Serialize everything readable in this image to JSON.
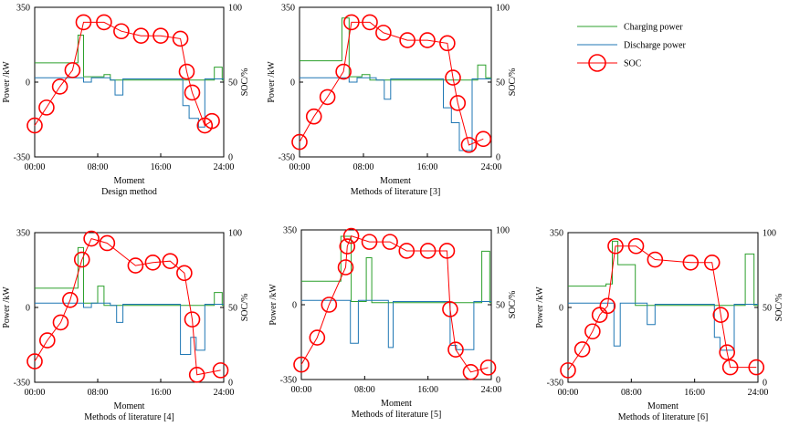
{
  "legend": {
    "placement": "top-right",
    "items": [
      {
        "label": "Charging power",
        "color": "#2ca02c",
        "style": "line"
      },
      {
        "label": "Discharge power",
        "color": "#1f77b4",
        "style": "line"
      },
      {
        "label": "SOC",
        "color": "#ff0000",
        "style": "circle-line"
      }
    ]
  },
  "chart_data": [
    {
      "type": "line",
      "caption": "Design method",
      "xlabel": "Moment",
      "ylabel": "Power /kW",
      "y2label": "SOC/%",
      "xlim": [
        0,
        24
      ],
      "ylim": [
        -350,
        350
      ],
      "y2lim": [
        0,
        100
      ],
      "xticks": [
        "00:00",
        "08:00",
        "16:00",
        "24:00"
      ],
      "yticks": [
        "-350",
        "0",
        "350"
      ],
      "y2ticks": [
        "0",
        "50",
        "100"
      ],
      "charging_power": [
        [
          0,
          90
        ],
        [
          5.5,
          90
        ],
        [
          5.5,
          220
        ],
        [
          6.2,
          220
        ],
        [
          6.2,
          25
        ],
        [
          8.8,
          25
        ],
        [
          8.8,
          35
        ],
        [
          9.6,
          35
        ],
        [
          9.6,
          10
        ],
        [
          22.8,
          10
        ],
        [
          22.8,
          70
        ],
        [
          23.8,
          70
        ],
        [
          23.8,
          10
        ],
        [
          24,
          10
        ]
      ],
      "discharge_power": [
        [
          0,
          20
        ],
        [
          6.2,
          20
        ],
        [
          6.2,
          0
        ],
        [
          7.2,
          0
        ],
        [
          7.2,
          20
        ],
        [
          9.6,
          20
        ],
        [
          9.6,
          10
        ],
        [
          10.2,
          10
        ],
        [
          10.2,
          -60
        ],
        [
          11.2,
          -60
        ],
        [
          11.2,
          15
        ],
        [
          18.8,
          15
        ],
        [
          18.8,
          -110
        ],
        [
          19.6,
          -110
        ],
        [
          19.6,
          -170
        ],
        [
          20.8,
          -170
        ],
        [
          20.8,
          -210
        ],
        [
          21.6,
          -210
        ],
        [
          21.6,
          15
        ],
        [
          24,
          15
        ]
      ],
      "soc": [
        [
          0,
          21
        ],
        [
          1.5,
          33
        ],
        [
          3.2,
          47
        ],
        [
          4.8,
          58
        ],
        [
          6.2,
          90
        ],
        [
          8.8,
          90
        ],
        [
          11,
          84
        ],
        [
          13.5,
          81
        ],
        [
          16,
          81
        ],
        [
          18.5,
          79
        ],
        [
          19.3,
          57
        ],
        [
          20,
          43
        ],
        [
          21.6,
          21
        ],
        [
          22.5,
          24
        ]
      ]
    },
    {
      "type": "line",
      "caption": "Methods of literature [3]",
      "xlabel": "Moment",
      "ylabel": "Power /kW",
      "y2label": "SOC/%",
      "xlim": [
        0,
        24
      ],
      "ylim": [
        -350,
        350
      ],
      "y2lim": [
        0,
        100
      ],
      "xticks": [
        "00:00",
        "08:00",
        "16:00",
        "24:00"
      ],
      "yticks": [
        "-350",
        "0",
        "350"
      ],
      "y2ticks": [
        "0",
        "50",
        "100"
      ],
      "charging_power": [
        [
          0,
          100
        ],
        [
          4.5,
          100
        ],
        [
          4.5,
          100
        ],
        [
          5.3,
          100
        ],
        [
          5.3,
          300
        ],
        [
          6.2,
          300
        ],
        [
          6.2,
          25
        ],
        [
          7.8,
          25
        ],
        [
          7.8,
          35
        ],
        [
          8.8,
          35
        ],
        [
          8.8,
          10
        ],
        [
          22.3,
          10
        ],
        [
          22.3,
          80
        ],
        [
          23.3,
          80
        ],
        [
          23.3,
          20
        ],
        [
          24,
          20
        ]
      ],
      "discharge_power": [
        [
          0,
          20
        ],
        [
          6.2,
          20
        ],
        [
          6.2,
          0
        ],
        [
          7.2,
          0
        ],
        [
          7.2,
          20
        ],
        [
          9.6,
          20
        ],
        [
          9.6,
          10
        ],
        [
          10.6,
          10
        ],
        [
          10.6,
          -80
        ],
        [
          11.4,
          -80
        ],
        [
          11.4,
          15
        ],
        [
          18,
          15
        ],
        [
          18,
          -120
        ],
        [
          19,
          -120
        ],
        [
          19,
          -190
        ],
        [
          20,
          -190
        ],
        [
          20,
          -320
        ],
        [
          21.6,
          -320
        ],
        [
          21.6,
          15
        ],
        [
          24,
          15
        ]
      ],
      "soc": [
        [
          0,
          10
        ],
        [
          1.8,
          27
        ],
        [
          3.5,
          40
        ],
        [
          5.5,
          57
        ],
        [
          6.5,
          90
        ],
        [
          8.8,
          90
        ],
        [
          10.5,
          83
        ],
        [
          13.5,
          78
        ],
        [
          16,
          78
        ],
        [
          18.5,
          76
        ],
        [
          19.2,
          53
        ],
        [
          19.8,
          36
        ],
        [
          21.2,
          8
        ],
        [
          23,
          12
        ]
      ]
    },
    {
      "type": "line",
      "caption": "Methods of literature [4]",
      "xlabel": "Moment",
      "ylabel": "Power /kW",
      "y2label": "SOC/%",
      "xlim": [
        0,
        24
      ],
      "ylim": [
        -350,
        350
      ],
      "y2lim": [
        0,
        100
      ],
      "xticks": [
        "00:00",
        "08:00",
        "16:00",
        "24:00"
      ],
      "yticks": [
        "-350",
        "0",
        "350"
      ],
      "y2ticks": [
        "0",
        "50",
        "100"
      ],
      "charging_power": [
        [
          0,
          90
        ],
        [
          5.5,
          90
        ],
        [
          5.5,
          280
        ],
        [
          6.2,
          280
        ],
        [
          6.2,
          20
        ],
        [
          8,
          20
        ],
        [
          8,
          100
        ],
        [
          8.8,
          100
        ],
        [
          8.8,
          10
        ],
        [
          22.8,
          10
        ],
        [
          22.8,
          70
        ],
        [
          23.8,
          70
        ],
        [
          23.8,
          10
        ],
        [
          24,
          10
        ]
      ],
      "discharge_power": [
        [
          0,
          20
        ],
        [
          6.2,
          20
        ],
        [
          6.2,
          0
        ],
        [
          7.2,
          0
        ],
        [
          7.2,
          20
        ],
        [
          9.6,
          20
        ],
        [
          9.6,
          10
        ],
        [
          10.4,
          10
        ],
        [
          10.4,
          -70
        ],
        [
          11.2,
          -70
        ],
        [
          11.2,
          15
        ],
        [
          18.5,
          15
        ],
        [
          18.5,
          -220
        ],
        [
          19.8,
          -220
        ],
        [
          19.8,
          -140
        ],
        [
          20.5,
          -140
        ],
        [
          20.5,
          -200
        ],
        [
          21.6,
          -200
        ],
        [
          21.6,
          15
        ],
        [
          24,
          15
        ]
      ],
      "soc": [
        [
          0,
          14
        ],
        [
          1.6,
          28
        ],
        [
          3.3,
          40
        ],
        [
          4.5,
          55
        ],
        [
          6,
          82
        ],
        [
          7.2,
          96
        ],
        [
          9.2,
          93
        ],
        [
          12.8,
          78
        ],
        [
          15,
          80
        ],
        [
          17.2,
          81
        ],
        [
          19,
          73
        ],
        [
          20,
          42
        ],
        [
          20.6,
          5
        ],
        [
          23.6,
          8
        ]
      ]
    },
    {
      "type": "line",
      "caption": "Methods of literature [5]",
      "xlabel": "Moment",
      "ylabel": "Power /kW",
      "y2label": "SOC/%",
      "xlim": [
        0,
        24
      ],
      "ylim": [
        -350,
        350
      ],
      "y2lim": [
        0,
        100
      ],
      "xticks": [
        "00:00",
        "08:00",
        "16:00",
        "24:00"
      ],
      "yticks": [
        "-350",
        "0",
        "350"
      ],
      "y2ticks": [
        "0",
        "50",
        "100"
      ],
      "charging_power": [
        [
          0,
          110
        ],
        [
          5,
          110
        ],
        [
          5,
          320
        ],
        [
          6.3,
          320
        ],
        [
          6.3,
          15
        ],
        [
          8.2,
          15
        ],
        [
          8.2,
          220
        ],
        [
          8.9,
          220
        ],
        [
          8.9,
          10
        ],
        [
          22.8,
          10
        ],
        [
          22.8,
          250
        ],
        [
          23.8,
          250
        ],
        [
          23.8,
          10
        ],
        [
          24,
          10
        ]
      ],
      "discharge_power": [
        [
          0,
          20
        ],
        [
          6.2,
          20
        ],
        [
          6.2,
          -180
        ],
        [
          7.2,
          -180
        ],
        [
          7.2,
          20
        ],
        [
          11,
          20
        ],
        [
          11,
          -200
        ],
        [
          11.6,
          -200
        ],
        [
          11.6,
          15
        ],
        [
          18.8,
          15
        ],
        [
          18.8,
          -190
        ],
        [
          19.6,
          -190
        ],
        [
          19.6,
          -210
        ],
        [
          21.8,
          -210
        ],
        [
          21.8,
          15
        ],
        [
          24,
          15
        ]
      ],
      "soc": [
        [
          0,
          10
        ],
        [
          2,
          28
        ],
        [
          3.5,
          50
        ],
        [
          5.6,
          75
        ],
        [
          5.8,
          89
        ],
        [
          6.3,
          96
        ],
        [
          8.6,
          92
        ],
        [
          11.2,
          92
        ],
        [
          13.3,
          86
        ],
        [
          16,
          86
        ],
        [
          18.4,
          86
        ],
        [
          18.8,
          47
        ],
        [
          19.5,
          20
        ],
        [
          21.4,
          5
        ],
        [
          23.6,
          8
        ]
      ]
    },
    {
      "type": "line",
      "caption": "Methods of literature [6]",
      "xlabel": "Moment",
      "ylabel": "Power /kW",
      "y2label": "SOC/%",
      "xlim": [
        0,
        24
      ],
      "ylim": [
        -350,
        350
      ],
      "y2lim": [
        0,
        100
      ],
      "xticks": [
        "00:00",
        "08:00",
        "16:00",
        "24:00"
      ],
      "yticks": [
        "-350",
        "0",
        "350"
      ],
      "y2ticks": [
        "0",
        "50",
        "100"
      ],
      "charging_power": [
        [
          0,
          100
        ],
        [
          4.8,
          100
        ],
        [
          4.8,
          110
        ],
        [
          5.6,
          110
        ],
        [
          5.6,
          310
        ],
        [
          6.3,
          310
        ],
        [
          6.3,
          200
        ],
        [
          8.5,
          200
        ],
        [
          8.5,
          10
        ],
        [
          22.4,
          10
        ],
        [
          22.4,
          250
        ],
        [
          23.5,
          250
        ],
        [
          23.5,
          10
        ],
        [
          24,
          10
        ]
      ],
      "discharge_power": [
        [
          0,
          20
        ],
        [
          5.8,
          20
        ],
        [
          5.8,
          -180
        ],
        [
          6.6,
          -180
        ],
        [
          6.6,
          20
        ],
        [
          10,
          20
        ],
        [
          10,
          -80
        ],
        [
          11,
          -80
        ],
        [
          11,
          15
        ],
        [
          18.5,
          15
        ],
        [
          18.5,
          -140
        ],
        [
          19.2,
          -140
        ],
        [
          19.2,
          -200
        ],
        [
          21,
          -200
        ],
        [
          21,
          15
        ],
        [
          24,
          15
        ]
      ],
      "soc": [
        [
          0,
          8
        ],
        [
          1.8,
          22
        ],
        [
          3.1,
          34
        ],
        [
          4,
          45
        ],
        [
          5,
          51
        ],
        [
          6,
          91
        ],
        [
          8.6,
          91
        ],
        [
          11,
          82
        ],
        [
          15.5,
          80
        ],
        [
          18.2,
          80
        ],
        [
          19.3,
          45
        ],
        [
          20.1,
          20
        ],
        [
          20.5,
          10
        ],
        [
          23.8,
          10
        ]
      ]
    }
  ]
}
